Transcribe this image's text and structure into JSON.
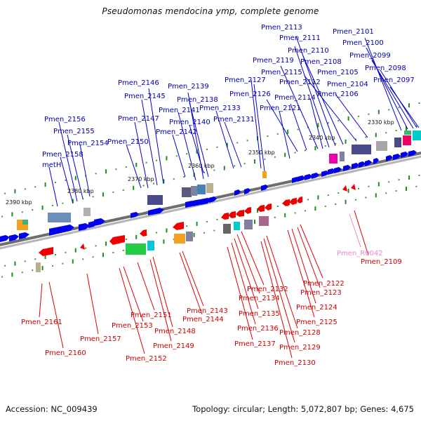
{
  "title": "Pseudomonas mendocina ymp, complete genome",
  "footer": {
    "accession": "Accession: NC_009439",
    "summary": "Topology: circular; Length: 5,072,807 bp; Genes: 4,675"
  },
  "colors": {
    "forward_gene": "#0000ee",
    "reverse_gene": "#ee0000",
    "forward_label": "#0000aa",
    "reverse_label": "#cc0000",
    "rna_label": "#ee88cc",
    "axis": "#888888",
    "tick": "#228b22"
  },
  "scale_labels": [
    "2330 kbp",
    "2340 kbp",
    "2350 kbp",
    "2360 kbp",
    "2370 kbp",
    "2380 kbp",
    "2390 kbp"
  ],
  "forward_labels": [
    "Pmen_2113",
    "Pmen_2101",
    "Pmen_2111",
    "Pmen_2100",
    "Pmen_2110",
    "Pmen_2099",
    "Pmen_2119",
    "Pmen_2108",
    "Pmen_2098",
    "Pmen_2115",
    "Pmen_2105",
    "Pmen_2127",
    "Pmen_2112",
    "Pmen_2097",
    "Pmen_2104",
    "Pmen_2146",
    "Pmen_2139",
    "Pmen_2126",
    "Pmen_2114",
    "Pmen_2106",
    "Pmen_2145",
    "Pmen_2138",
    "Pmen_2141",
    "Pmen_2133",
    "Pmen_2121",
    "Pmen_2147",
    "Pmen_2131",
    "Pmen_2140",
    "Pmen_2156",
    "Pmen_2142",
    "Pmen_2155",
    "Pmen_2150",
    "Pmen_2154",
    "Pmen_2158",
    "metH"
  ],
  "reverse_labels": [
    "Pmen_2109",
    "Pmen_2122",
    "Pmen_2132",
    "Pmen_2123",
    "Pmen_2134",
    "Pmen_2124",
    "Pmen_2143",
    "Pmen_2135",
    "Pmen_2151",
    "Pmen_2144",
    "Pmen_2125",
    "Pmen_2153",
    "Pmen_2161",
    "Pmen_2136",
    "Pmen_2148",
    "Pmen_2128",
    "Pmen_2157",
    "Pmen_2137",
    "Pmen_2149",
    "Pmen_2129",
    "Pmen_2160",
    "Pmen_2152",
    "Pmen_2130"
  ],
  "rna_labels": [
    "Pmen_R0042"
  ]
}
